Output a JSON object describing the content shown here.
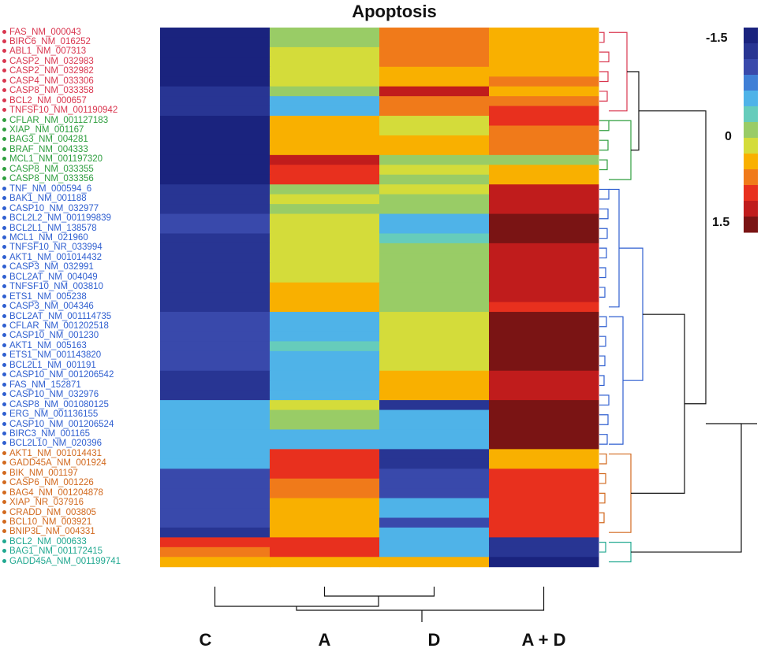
{
  "title": "Apoptosis",
  "chart_data": {
    "type": "heatmap",
    "title": "Apoptosis",
    "columns": [
      "C",
      "A",
      "D",
      "A + D"
    ],
    "colorbar": {
      "ticks": [
        "-1.5",
        "0",
        "1.5"
      ],
      "range": [
        -1.5,
        1.5
      ]
    },
    "colors": [
      "#1a237e",
      "#283593",
      "#3949ab",
      "#3f7fd6",
      "#4fb3e8",
      "#66ccbb",
      "#99cc66",
      "#d4dc3a",
      "#f9b000",
      "#f07a1a",
      "#e8301e",
      "#c01c1c",
      "#7a1414"
    ],
    "cluster_colors": {
      "red": "#d9364f",
      "green": "#2e9e3e",
      "blue": "#2f5fd0",
      "orange": "#d2691e",
      "teal": "#20a890"
    },
    "rows": [
      {
        "gene": "FAS_NM_000043",
        "cluster": "red",
        "values": [
          -1.5,
          0.0,
          0.8,
          0.6
        ]
      },
      {
        "gene": "BIRC6_NM_016252",
        "cluster": "red",
        "values": [
          -1.5,
          0.1,
          0.8,
          0.6
        ]
      },
      {
        "gene": "ABL1_NM_007313",
        "cluster": "red",
        "values": [
          -1.5,
          0.3,
          0.8,
          0.5
        ]
      },
      {
        "gene": "CASP2_NM_032983",
        "cluster": "red",
        "values": [
          -1.5,
          0.3,
          0.8,
          0.5
        ]
      },
      {
        "gene": "CASP2_NM_032982",
        "cluster": "red",
        "values": [
          -1.5,
          0.3,
          0.6,
          0.6
        ]
      },
      {
        "gene": "CASP4_NM_033306",
        "cluster": "red",
        "values": [
          -1.5,
          0.3,
          0.6,
          0.7
        ]
      },
      {
        "gene": "CASP8_NM_033358",
        "cluster": "red",
        "values": [
          -1.3,
          0.1,
          1.2,
          0.4
        ]
      },
      {
        "gene": "BCL2_NM_000657",
        "cluster": "red",
        "values": [
          -1.2,
          -0.4,
          0.8,
          0.8
        ]
      },
      {
        "gene": "TNFSF10_NM_001190942",
        "cluster": "red",
        "values": [
          -1.2,
          -0.4,
          0.8,
          0.9
        ]
      },
      {
        "gene": "CFLAR_NM_001127183",
        "cluster": "green",
        "values": [
          -1.5,
          0.5,
          0.3,
          0.9
        ]
      },
      {
        "gene": "XIAP_NM_001167",
        "cluster": "green",
        "values": [
          -1.5,
          0.5,
          0.3,
          0.8
        ]
      },
      {
        "gene": "BAG3_NM_004281",
        "cluster": "green",
        "values": [
          -1.6,
          0.4,
          0.4,
          0.8
        ]
      },
      {
        "gene": "BRAF_NM_004333",
        "cluster": "green",
        "values": [
          -1.6,
          0.5,
          0.4,
          0.7
        ]
      },
      {
        "gene": "MCL1_NM_001197320",
        "cluster": "green",
        "values": [
          -1.4,
          1.2,
          0.1,
          0.0
        ]
      },
      {
        "gene": "CASP8_NM_033355",
        "cluster": "green",
        "values": [
          -1.4,
          0.9,
          0.2,
          0.5
        ]
      },
      {
        "gene": "CASP8_NM_033356",
        "cluster": "green",
        "values": [
          -1.4,
          0.9,
          0.1,
          0.5
        ]
      },
      {
        "gene": "TNF_NM_000594_6",
        "cluster": "blue",
        "values": [
          -1.2,
          0.1,
          0.2,
          1.2
        ]
      },
      {
        "gene": "BAK1_NM_001188",
        "cluster": "blue",
        "values": [
          -1.2,
          0.2,
          0.0,
          1.3
        ]
      },
      {
        "gene": "CASP10_NM_032977",
        "cluster": "blue",
        "values": [
          -1.2,
          0.1,
          0.0,
          1.3
        ]
      },
      {
        "gene": "BCL2L2_NM_001199839",
        "cluster": "blue",
        "values": [
          -1.0,
          0.2,
          -0.4,
          1.4
        ]
      },
      {
        "gene": "BCL2L1_NM_138578",
        "cluster": "blue",
        "values": [
          -1.0,
          0.2,
          -0.4,
          1.5
        ]
      },
      {
        "gene": "MCL1_NM_021960",
        "cluster": "blue",
        "values": [
          -1.2,
          0.3,
          -0.2,
          1.4
        ]
      },
      {
        "gene": "TNFSF10_NR_033994",
        "cluster": "blue",
        "values": [
          -1.2,
          0.3,
          -0.1,
          1.3
        ]
      },
      {
        "gene": "AKT1_NM_001014432",
        "cluster": "blue",
        "values": [
          -1.2,
          0.3,
          0.0,
          1.2
        ]
      },
      {
        "gene": "CASP3_NM_032991",
        "cluster": "blue",
        "values": [
          -1.2,
          0.3,
          0.0,
          1.2
        ]
      },
      {
        "gene": "BCL2AT_NM_004049",
        "cluster": "blue",
        "values": [
          -1.2,
          0.3,
          0.0,
          1.2
        ]
      },
      {
        "gene": "TNFSF10_NM_003810",
        "cluster": "blue",
        "values": [
          -1.2,
          0.4,
          0.0,
          1.2
        ]
      },
      {
        "gene": "ETS1_NM_005238",
        "cluster": "blue",
        "values": [
          -1.2,
          0.4,
          0.0,
          1.2
        ]
      },
      {
        "gene": "CASP3_NM_004346",
        "cluster": "blue",
        "values": [
          -1.2,
          0.5,
          0.0,
          1.1
        ]
      },
      {
        "gene": "BCL2AT_NM_001114735",
        "cluster": "blue",
        "values": [
          -0.9,
          -0.4,
          0.2,
          1.4
        ]
      },
      {
        "gene": "CFLAR_NM_001202518",
        "cluster": "blue",
        "values": [
          -0.9,
          -0.4,
          0.2,
          1.4
        ]
      },
      {
        "gene": "CASP10_NM_001230",
        "cluster": "blue",
        "values": [
          -0.9,
          -0.4,
          0.2,
          1.4
        ]
      },
      {
        "gene": "AKT1_NM_005163",
        "cluster": "blue",
        "values": [
          -0.9,
          -0.3,
          0.3,
          1.4
        ]
      },
      {
        "gene": "ETS1_NM_001143820",
        "cluster": "blue",
        "values": [
          -0.9,
          -0.4,
          0.3,
          1.4
        ]
      },
      {
        "gene": "BCL2L1_NM_001191",
        "cluster": "blue",
        "values": [
          -0.9,
          -0.4,
          0.3,
          1.4
        ]
      },
      {
        "gene": "CASP10_NM_001206542",
        "cluster": "blue",
        "values": [
          -1.2,
          -0.4,
          0.5,
          1.2
        ]
      },
      {
        "gene": "FAS_NM_152871",
        "cluster": "blue",
        "values": [
          -1.2,
          -0.4,
          0.5,
          1.2
        ]
      },
      {
        "gene": "CASP10_NM_032976",
        "cluster": "blue",
        "values": [
          -1.2,
          -0.4,
          0.5,
          1.2
        ]
      },
      {
        "gene": "CASP8_NM_001080125",
        "cluster": "blue",
        "values": [
          -0.6,
          0.2,
          -1.2,
          1.4
        ]
      },
      {
        "gene": "ERG_NM_001136155",
        "cluster": "blue",
        "values": [
          -0.6,
          0.0,
          -0.6,
          1.5
        ]
      },
      {
        "gene": "CASP10_NM_001206524",
        "cluster": "blue",
        "values": [
          -0.6,
          0.0,
          -0.6,
          1.5
        ]
      },
      {
        "gene": "BIRC3_NM_001165",
        "cluster": "blue",
        "values": [
          -0.4,
          -0.4,
          -0.4,
          1.5
        ]
      },
      {
        "gene": "BCL2L10_NM_020396",
        "cluster": "blue",
        "values": [
          -0.4,
          -0.4,
          -0.4,
          1.5
        ]
      },
      {
        "gene": "AKT1_NM_001014431",
        "cluster": "orange",
        "values": [
          -0.5,
          1.1,
          -1.3,
          0.6
        ]
      },
      {
        "gene": "GADD45A_NM_001924",
        "cluster": "orange",
        "values": [
          -0.5,
          1.1,
          -1.3,
          0.6
        ]
      },
      {
        "gene": "BIK_NM_001197",
        "cluster": "orange",
        "values": [
          -1.1,
          0.9,
          -1.1,
          1.0
        ]
      },
      {
        "gene": "CASP6_NM_001226",
        "cluster": "orange",
        "values": [
          -1.1,
          0.8,
          -1.0,
          1.1
        ]
      },
      {
        "gene": "BAG4_NM_001204878",
        "cluster": "orange",
        "values": [
          -1.0,
          0.7,
          -1.0,
          1.0
        ]
      },
      {
        "gene": "XIAP_NR_037916",
        "cluster": "orange",
        "values": [
          -1.0,
          0.6,
          -0.6,
          1.1
        ]
      },
      {
        "gene": "CRADD_NM_003805",
        "cluster": "orange",
        "values": [
          -1.0,
          0.6,
          -0.6,
          1.1
        ]
      },
      {
        "gene": "BCL10_NM_003921",
        "cluster": "orange",
        "values": [
          -1.1,
          0.5,
          -0.9,
          1.0
        ]
      },
      {
        "gene": "BNIP3L_NM_004331",
        "cluster": "orange",
        "values": [
          -1.2,
          0.5,
          -0.6,
          1.0
        ]
      },
      {
        "gene": "BCL2_NM_000633",
        "cluster": "teal",
        "values": [
          1.1,
          1.0,
          -0.4,
          -1.2
        ]
      },
      {
        "gene": "BAG1_NM_001172415",
        "cluster": "teal",
        "values": [
          0.8,
          1.1,
          -0.4,
          -1.2
        ]
      },
      {
        "gene": "GADD45A_NM_001199741",
        "cluster": "teal",
        "values": [
          0.6,
          0.5,
          0.5,
          -1.6
        ]
      }
    ]
  }
}
